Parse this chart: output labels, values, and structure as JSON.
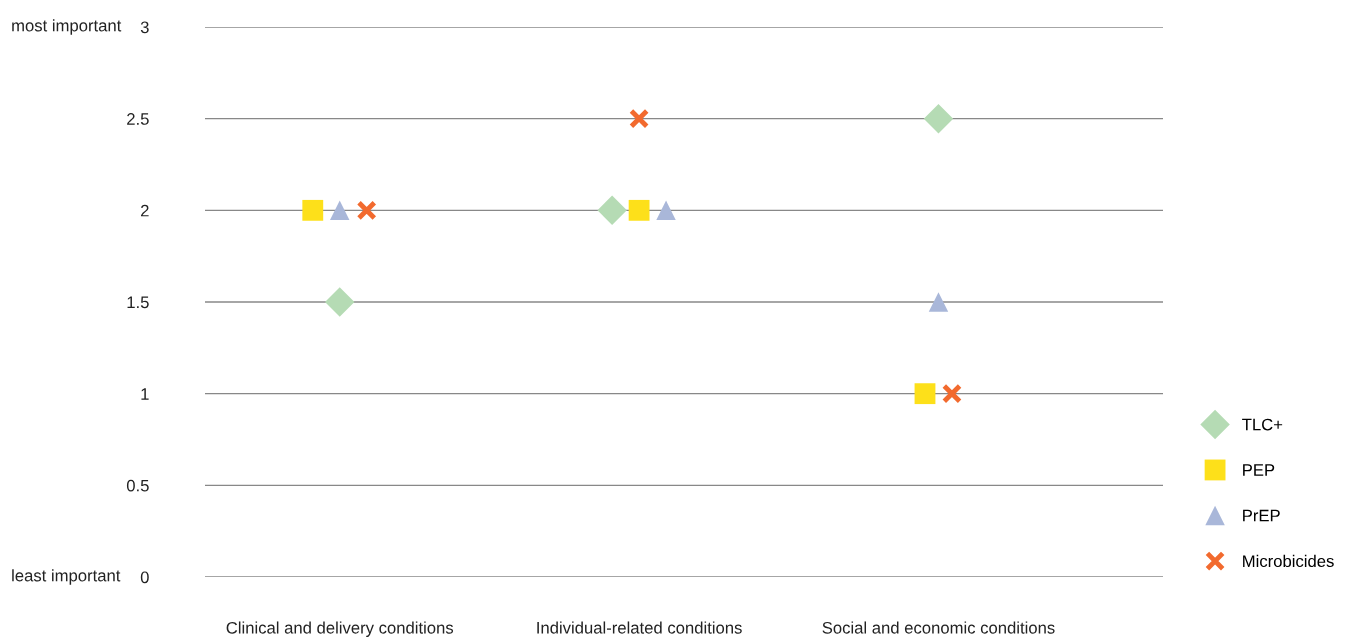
{
  "chart_data": {
    "type": "scatter",
    "categories": [
      "Clinical and delivery conditions",
      "Individual-related conditions",
      "Social and economic conditions"
    ],
    "series": [
      {
        "name": "TLC+",
        "color": "#b5dbb4",
        "marker": "diamond",
        "values": [
          1.5,
          2,
          2.5
        ]
      },
      {
        "name": "PEP",
        "color": "#fde01a",
        "marker": "square",
        "values": [
          2,
          2,
          1
        ]
      },
      {
        "name": "PrEP",
        "color": "#a9b7d9",
        "marker": "triangle",
        "values": [
          2,
          2,
          1.5
        ]
      },
      {
        "name": "Microbicides",
        "color": "#f26a2e",
        "marker": "cross",
        "values": [
          2,
          2.5,
          1
        ]
      }
    ],
    "ylim": [
      0,
      3
    ],
    "yticks": [
      0,
      0.5,
      1,
      1.5,
      2,
      2.5,
      3
    ],
    "annotations": [
      "most important",
      "least important"
    ],
    "grid": "y",
    "legend": "bottom right"
  }
}
